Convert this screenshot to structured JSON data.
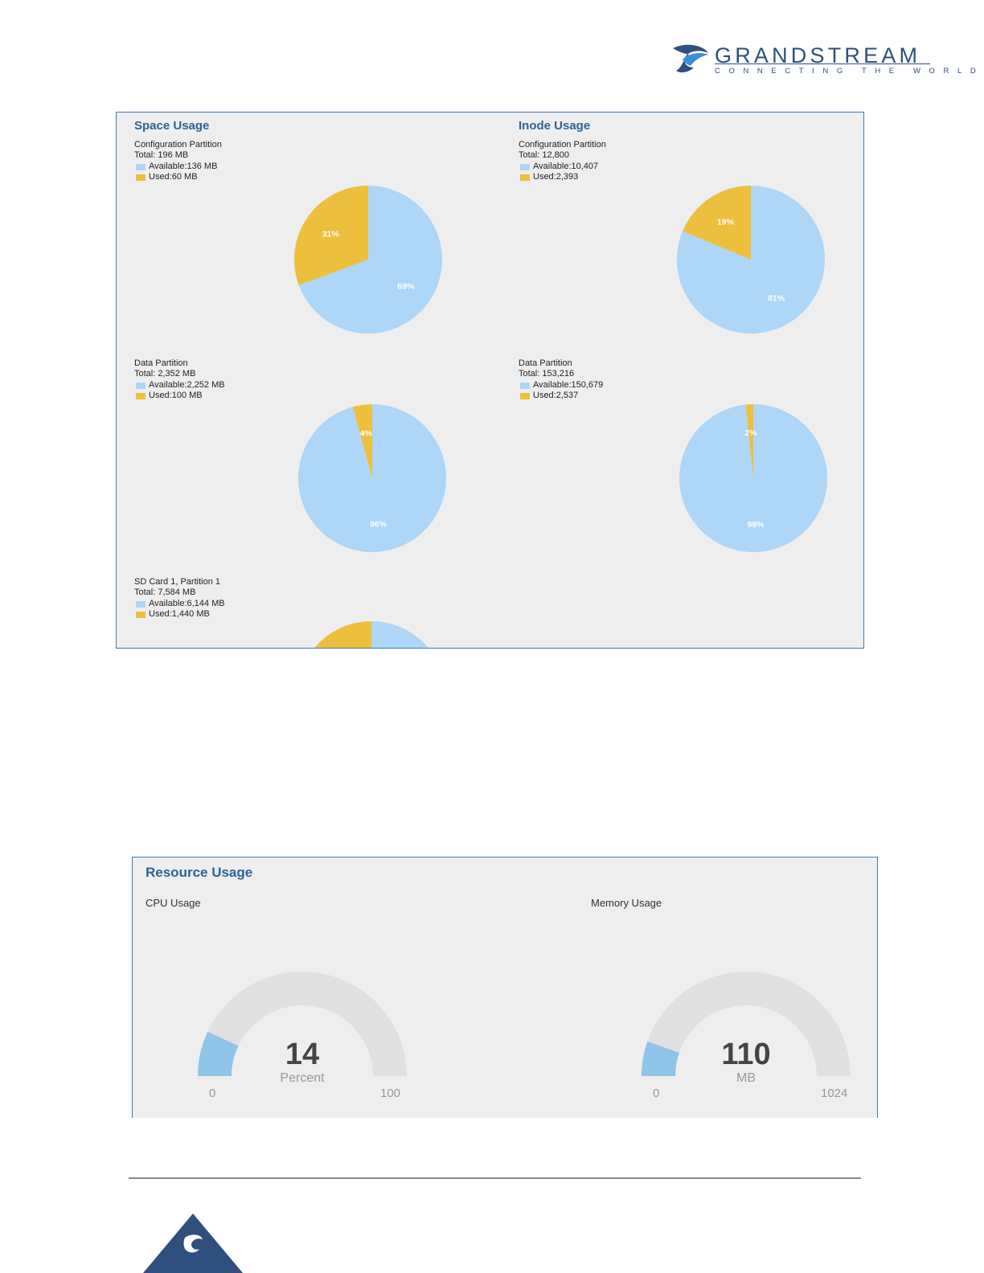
{
  "brand": {
    "name": "GRANDSTREAM",
    "tagline": "CONNECTING THE WORLD",
    "color": "#2f4f7f",
    "accent": "#3b8fd6"
  },
  "colors": {
    "available": "#aed6f6",
    "used": "#ecbf3d",
    "panel_bg": "#eeeeee",
    "panel_border": "#3d7ab8",
    "title": "#2a6496",
    "gauge_track": "#e0e0e0",
    "gauge_fill": "#8ec5e8"
  },
  "storage": {
    "space_title": "Space Usage",
    "inode_title": "Inode Usage",
    "space": {
      "config": {
        "name": "Configuration Partition",
        "total": "Total: 196 MB",
        "available_label": "Available:136 MB",
        "used_label": "Used:60 MB",
        "available_pct_label": "69%",
        "used_pct_label": "31%"
      },
      "data": {
        "name": "Data Partition",
        "total": "Total: 2,352 MB",
        "available_label": "Available:2,252 MB",
        "used_label": "Used:100 MB",
        "available_pct_label": "96%",
        "used_pct_label": "4%"
      },
      "sd": {
        "name": "SD Card 1, Partition 1",
        "total": "Total: 7,584 MB",
        "available_label": "Available:6,144 MB",
        "used_label": "Used:1,440 MB"
      }
    },
    "inode": {
      "config": {
        "name": "Configuration Partition",
        "total": "Total: 12,800",
        "available_label": "Available:10,407",
        "used_label": "Used:2,393",
        "available_pct_label": "81%",
        "used_pct_label": "19%"
      },
      "data": {
        "name": "Data Partition",
        "total": "Total: 153,216",
        "available_label": "Available:150,679",
        "used_label": "Used:2,537",
        "available_pct_label": "98%",
        "used_pct_label": "2%"
      }
    }
  },
  "chart_data": [
    {
      "type": "pie",
      "title": "Configuration Partition",
      "categories": [
        "Available",
        "Used"
      ],
      "values": [
        136,
        60
      ],
      "labels": [
        "69%",
        "31%"
      ]
    },
    {
      "type": "pie",
      "title": "Configuration Partition",
      "categories": [
        "Available",
        "Used"
      ],
      "values": [
        10407,
        2393
      ],
      "labels": [
        "81%",
        "19%"
      ]
    },
    {
      "type": "pie",
      "title": "Data Partition",
      "categories": [
        "Available",
        "Used"
      ],
      "values": [
        2252,
        100
      ],
      "labels": [
        "96%",
        "4%"
      ]
    },
    {
      "type": "pie",
      "title": "Data Partition",
      "categories": [
        "Available",
        "Used"
      ],
      "values": [
        150679,
        2537
      ],
      "labels": [
        "98%",
        "2%"
      ]
    },
    {
      "type": "pie",
      "title": "SD Card 1, Partition 1",
      "categories": [
        "Available",
        "Used"
      ],
      "values": [
        6144,
        1440
      ]
    }
  ],
  "resource": {
    "title": "Resource Usage",
    "cpu": {
      "label": "CPU Usage",
      "value": 14,
      "value_text": "14",
      "unit": "Percent",
      "min": "0",
      "max": "100",
      "max_value": 100
    },
    "memory": {
      "label": "Memory Usage",
      "value": 110,
      "value_text": "110",
      "unit": "MB",
      "min": "0",
      "max": "1024",
      "max_value": 1024
    }
  }
}
